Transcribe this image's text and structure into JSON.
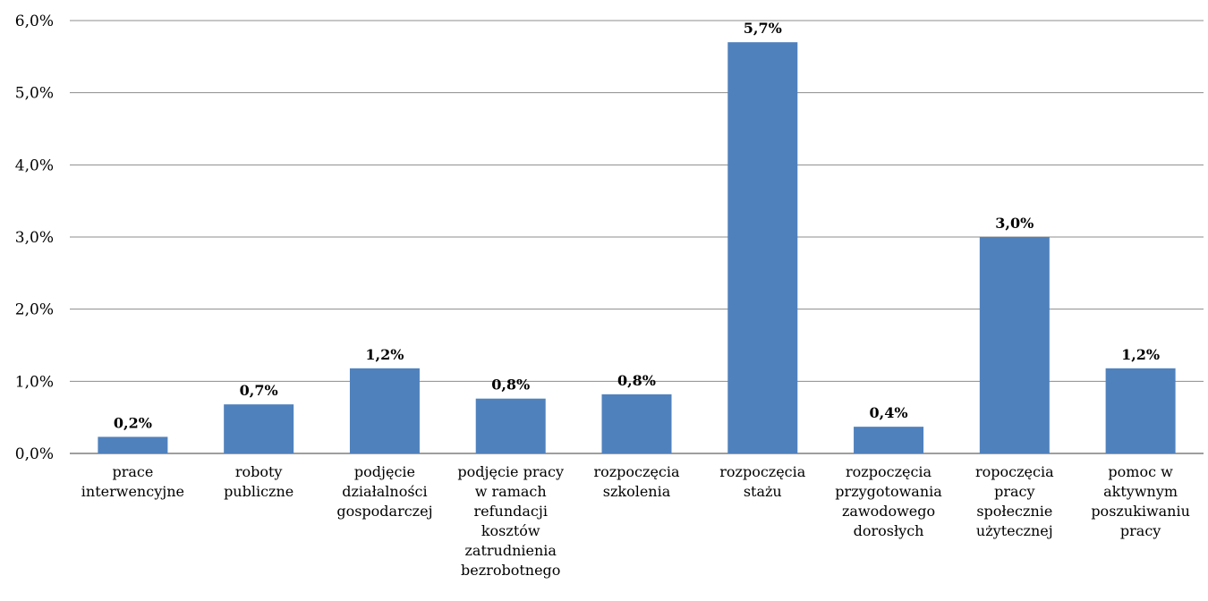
{
  "chart_data": {
    "type": "bar",
    "categories": [
      [
        "prace",
        "interwencyjne"
      ],
      [
        "roboty",
        "publiczne"
      ],
      [
        "podjęcie",
        "działalności",
        "gospodarczej"
      ],
      [
        "podjęcie pracy",
        "w ramach",
        "refundacji",
        "kosztów",
        "zatrudnienia",
        "bezrobotnego"
      ],
      [
        "rozpoczęcia",
        "szkolenia"
      ],
      [
        "rozpoczęcia",
        "stażu"
      ],
      [
        "rozpoczęcia",
        "przygotowania",
        "zawodowego",
        "dorosłych"
      ],
      [
        "ropoczęcia",
        "pracy",
        "społecznie",
        "użytecznej"
      ],
      [
        "pomoc w",
        "aktywnym",
        "poszukiwaniu",
        "pracy"
      ]
    ],
    "values": [
      0.23,
      0.68,
      1.18,
      0.76,
      0.82,
      5.7,
      0.37,
      3.0,
      1.18
    ],
    "data_labels": [
      "0,2%",
      "0,7%",
      "1,2%",
      "0,8%",
      "0,8%",
      "5,7%",
      "0,4%",
      "3,0%",
      "1,2%"
    ],
    "y_ticks": [
      "0,0%",
      "1,0%",
      "2,0%",
      "3,0%",
      "4,0%",
      "5,0%",
      "6,0%"
    ],
    "ylim": [
      0,
      6
    ],
    "grid": true,
    "legend": "none",
    "bar_color": "#4f81bd",
    "grid_color": "#8c8c8c"
  }
}
